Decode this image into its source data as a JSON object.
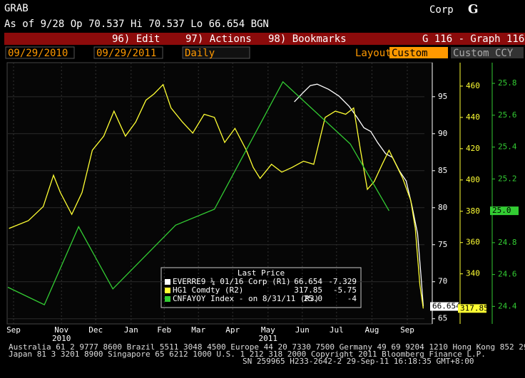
{
  "header": {
    "function": "GRAB",
    "market": "Corp",
    "logo": "G",
    "quote": "As of 9/28 Op 70.537  Hi 70.537  Lo 66.654  BGN",
    "menu": [
      "96) Edit",
      "97) Actions",
      "98) Bookmarks"
    ],
    "page": "G 116 - Graph 116",
    "start": "09/29/2010",
    "end": "09/29/2011",
    "period": "Daily",
    "layout_label": "Layout",
    "layout": "Custom",
    "currency": "Custom CCY"
  },
  "chart_data": {
    "type": "line",
    "xlim": [
      0,
      365
    ],
    "xticks": [
      {
        "value": 5,
        "label": "Sep"
      },
      {
        "value": 47,
        "label": "Nov"
      },
      {
        "value": 77,
        "label": "Dec"
      },
      {
        "value": 108,
        "label": "Jan"
      },
      {
        "value": 137,
        "label": "Feb"
      },
      {
        "value": 167,
        "label": "Mar"
      },
      {
        "value": 197,
        "label": "Apr"
      },
      {
        "value": 228,
        "label": "May"
      },
      {
        "value": 258,
        "label": "Jun"
      },
      {
        "value": 288,
        "label": "Jul"
      },
      {
        "value": 319,
        "label": "Aug"
      },
      {
        "value": 350,
        "label": "Sep"
      }
    ],
    "years": [
      {
        "value": 47,
        "label": "2010"
      },
      {
        "value": 228,
        "label": "2011"
      }
    ],
    "ylim": [
      64.3,
      99.6
    ],
    "yticks": [
      65,
      70,
      75,
      80,
      85,
      90,
      95
    ],
    "y2lim": [
      308,
      475
    ],
    "y2ticks": [
      340,
      360,
      380,
      400,
      420,
      440,
      460
    ],
    "y3lim": [
      24.29,
      25.93
    ],
    "y3ticks": [
      24.4,
      24.6,
      24.8,
      25.0,
      25.2,
      25.4,
      25.6,
      25.8
    ],
    "legend_title": "Last Price",
    "series": [
      {
        "name": "EVERRE9 ¼ 01/16 Corp (R1)",
        "color": "#ffffff",
        "axis": "y",
        "last_label": "66.654",
        "change": -7.329,
        "x": [
          251,
          259,
          265,
          271,
          281,
          290,
          299,
          306,
          312,
          318,
          324,
          331,
          337,
          343,
          349,
          354,
          359,
          362,
          364
        ],
        "values": [
          94.3,
          95.6,
          96.5,
          96.7,
          96.0,
          95.1,
          93.7,
          92.2,
          90.8,
          90.3,
          88.8,
          87.3,
          86.8,
          85.0,
          83.6,
          80.3,
          76.5,
          70.8,
          66.654
        ]
      },
      {
        "name": "HG1 Comdty (R2)",
        "color": "#ffff33",
        "axis": "y2",
        "last_label": "317.85",
        "change": -5.75,
        "x": [
          1,
          18,
          31,
          40,
          46,
          56,
          65,
          74,
          84,
          93,
          103,
          112,
          121,
          128,
          136,
          143,
          153,
          162,
          172,
          181,
          190,
          199,
          209,
          215,
          221,
          231,
          240,
          249,
          259,
          268,
          278,
          287,
          296,
          303,
          309,
          315,
          321,
          328,
          334,
          340,
          346,
          353,
          357,
          361,
          364
        ],
        "values": [
          369,
          374,
          383,
          403,
          392,
          378,
          392,
          419,
          428,
          444,
          428,
          437,
          451,
          455,
          461,
          446,
          437,
          430,
          442,
          440,
          424,
          433,
          419,
          408,
          401,
          410,
          405,
          408,
          412,
          410,
          440,
          444,
          442,
          446,
          419,
          394,
          399,
          410,
          419,
          410,
          401,
          387,
          369,
          333,
          317.85
        ]
      },
      {
        "name": "CNFAYOY Index - on 8/31/11 (R3)",
        "color": "#33cc33",
        "axis": "y3",
        "last_label": "25.0",
        "change": -4,
        "x": [
          0,
          32,
          62,
          92,
          147,
          181,
          241,
          300,
          334
        ],
        "values": [
          24.52,
          24.41,
          24.9,
          24.51,
          24.91,
          25.01,
          25.81,
          25.42,
          25.0
        ]
      }
    ]
  },
  "footer": [
    "Australia 61 2 9777 8600 Brazil 5511 3048 4500 Europe 44 20 7330 7500 Germany 49 69 9204 1210 Hong Kong 852 2977 6000",
    "Japan 81 3 3201 8900        Singapore 65 6212 1000        U.S. 1 212 318 2000        Copyright 2011 Bloomberg Finance L.P.",
    "SN 259965 H233-2642-2 29-Sep-11 16:18:35  GMT+8:00"
  ]
}
